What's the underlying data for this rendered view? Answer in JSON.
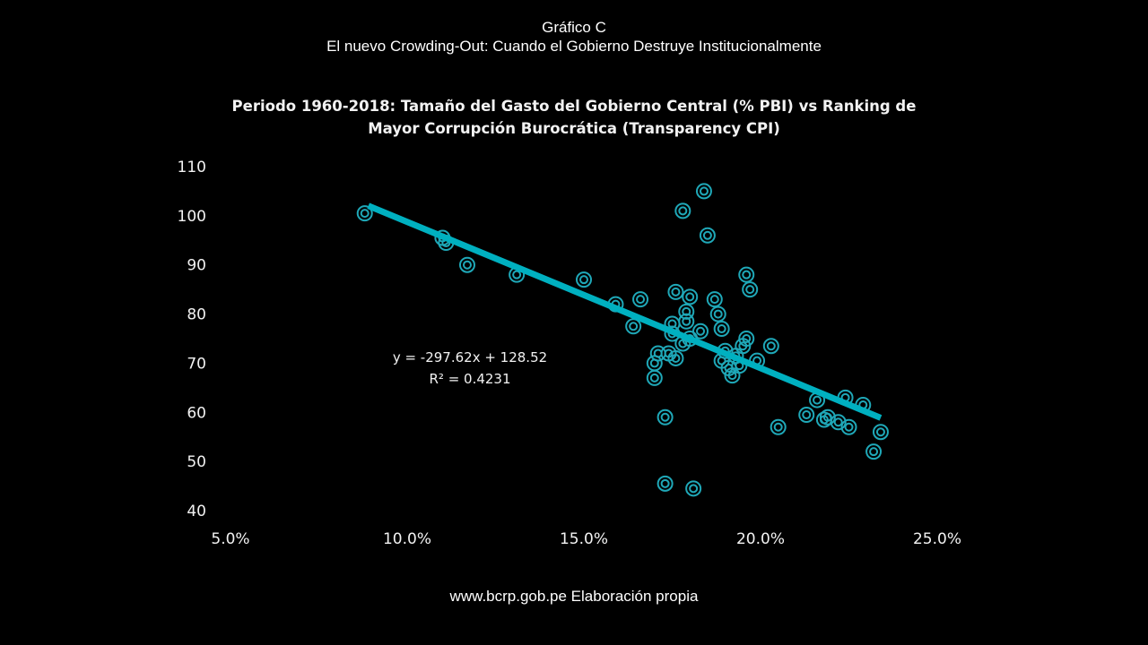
{
  "header": {
    "line1": "Gráfico C",
    "line2": "El nuevo Crowding-Out: Cuando el Gobierno Destruye Institucionalmente"
  },
  "footer": "www.bcrp.gob.pe Elaboración propia",
  "chart_data": {
    "type": "scatter",
    "title_line1": "Periodo 1960-2018: Tamaño del Gasto del Gobierno Central (% PBI) vs Ranking de",
    "title_line2": "Mayor Corrupción Burocrática (Transparency CPI)",
    "xlabel": "",
    "ylabel": "",
    "xlim": [
      0.05,
      0.25
    ],
    "ylim": [
      40,
      110
    ],
    "x_ticks": [
      0.05,
      0.1,
      0.15,
      0.2,
      0.25
    ],
    "x_tick_labels": [
      "5.0%",
      "10.0%",
      "15.0%",
      "20.0%",
      "25.0%"
    ],
    "y_ticks": [
      40,
      50,
      60,
      70,
      80,
      90,
      100,
      110
    ],
    "y_tick_labels": [
      "40",
      "50",
      "60",
      "70",
      "80",
      "90",
      "100",
      "110"
    ],
    "grid": false,
    "legend": "none",
    "marker_color": "#1fa8b8",
    "trendline": {
      "slope": -297.62,
      "intercept": 128.52,
      "x_range": [
        0.089,
        0.234
      ],
      "color": "#00b0c0",
      "equation_label": "y = -297.62x + 128.52",
      "r2_label": "R² = 0.4231"
    },
    "points": [
      {
        "x": 0.088,
        "y": 100.5
      },
      {
        "x": 0.11,
        "y": 95.5
      },
      {
        "x": 0.111,
        "y": 94.5
      },
      {
        "x": 0.117,
        "y": 90.0
      },
      {
        "x": 0.131,
        "y": 88.0
      },
      {
        "x": 0.15,
        "y": 87.0
      },
      {
        "x": 0.159,
        "y": 82.0
      },
      {
        "x": 0.164,
        "y": 77.5
      },
      {
        "x": 0.166,
        "y": 83.0
      },
      {
        "x": 0.17,
        "y": 70.0
      },
      {
        "x": 0.17,
        "y": 67.0
      },
      {
        "x": 0.171,
        "y": 72.0
      },
      {
        "x": 0.173,
        "y": 59.0
      },
      {
        "x": 0.173,
        "y": 45.5
      },
      {
        "x": 0.174,
        "y": 72.0
      },
      {
        "x": 0.175,
        "y": 78.0
      },
      {
        "x": 0.175,
        "y": 76.0
      },
      {
        "x": 0.176,
        "y": 84.5
      },
      {
        "x": 0.176,
        "y": 71.0
      },
      {
        "x": 0.178,
        "y": 101.0
      },
      {
        "x": 0.178,
        "y": 74.0
      },
      {
        "x": 0.179,
        "y": 80.5
      },
      {
        "x": 0.179,
        "y": 78.5
      },
      {
        "x": 0.18,
        "y": 83.5
      },
      {
        "x": 0.18,
        "y": 75.0
      },
      {
        "x": 0.181,
        "y": 44.5
      },
      {
        "x": 0.183,
        "y": 76.5
      },
      {
        "x": 0.184,
        "y": 105.0
      },
      {
        "x": 0.185,
        "y": 96.0
      },
      {
        "x": 0.187,
        "y": 83.0
      },
      {
        "x": 0.188,
        "y": 80.0
      },
      {
        "x": 0.189,
        "y": 77.0
      },
      {
        "x": 0.189,
        "y": 70.5
      },
      {
        "x": 0.19,
        "y": 72.5
      },
      {
        "x": 0.191,
        "y": 69.0
      },
      {
        "x": 0.192,
        "y": 67.5
      },
      {
        "x": 0.193,
        "y": 71.5
      },
      {
        "x": 0.194,
        "y": 69.5
      },
      {
        "x": 0.195,
        "y": 73.5
      },
      {
        "x": 0.196,
        "y": 75.0
      },
      {
        "x": 0.196,
        "y": 88.0
      },
      {
        "x": 0.197,
        "y": 85.0
      },
      {
        "x": 0.199,
        "y": 70.5
      },
      {
        "x": 0.203,
        "y": 73.5
      },
      {
        "x": 0.205,
        "y": 57.0
      },
      {
        "x": 0.213,
        "y": 59.5
      },
      {
        "x": 0.216,
        "y": 62.5
      },
      {
        "x": 0.218,
        "y": 58.5
      },
      {
        "x": 0.219,
        "y": 59.0
      },
      {
        "x": 0.222,
        "y": 58.0
      },
      {
        "x": 0.224,
        "y": 63.0
      },
      {
        "x": 0.225,
        "y": 57.0
      },
      {
        "x": 0.229,
        "y": 61.5
      },
      {
        "x": 0.232,
        "y": 52.0
      },
      {
        "x": 0.234,
        "y": 56.0
      }
    ]
  }
}
